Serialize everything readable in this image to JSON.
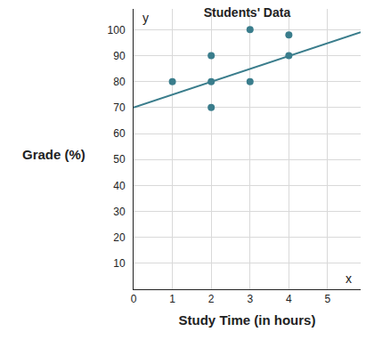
{
  "chart_data": {
    "type": "scatter",
    "title": "Students' Data",
    "x_label": "Study Time (in hours)",
    "y_label": "Grade (%)",
    "annotations": [
      "y",
      "x"
    ],
    "series": [
      {
        "type": "scatter",
        "marker": "circle",
        "color": "#3a7d8c",
        "x": [
          1,
          2,
          2,
          2,
          3,
          3,
          4,
          4
        ],
        "values": [
          80,
          90,
          80,
          70,
          100,
          80,
          98,
          90
        ]
      },
      {
        "type": "line",
        "line_style": "solid",
        "color": "#3a7d8c",
        "x": [
          0,
          5.85
        ],
        "values": [
          70,
          99
        ]
      }
    ],
    "xlim": [
      0,
      5.85
    ],
    "ylim": [
      0,
      108
    ],
    "xticks": [
      0,
      1,
      2,
      3,
      4,
      5
    ],
    "yticks": [
      10,
      20,
      30,
      40,
      50,
      60,
      70,
      80,
      90,
      100
    ],
    "grid": true
  }
}
